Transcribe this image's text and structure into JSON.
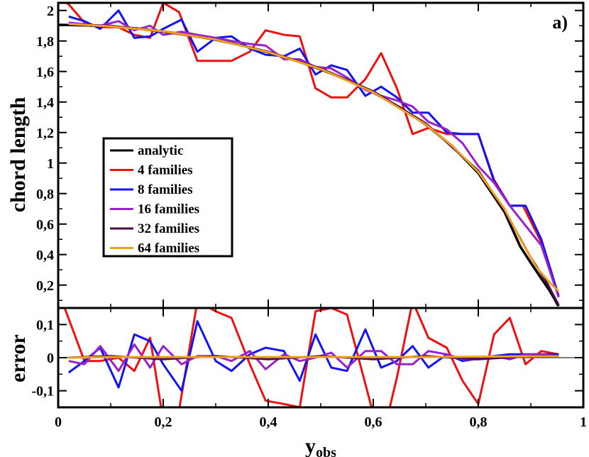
{
  "chart_data": [
    {
      "type": "line",
      "panel_label": "a)",
      "ylabel": "chord length",
      "xlim": [
        0,
        1
      ],
      "ylim": [
        0.05,
        2.05
      ],
      "yticks": [
        0.2,
        0.4,
        0.6,
        0.8,
        1,
        1.2,
        1.4,
        1.6,
        1.8,
        2
      ],
      "ytick_labels": [
        "0,2",
        "0,4",
        "0,6",
        "0,8",
        "1",
        "1,2",
        "1,4",
        "1,6",
        "1,8",
        "2"
      ],
      "legend": {
        "position": "left",
        "entries": [
          "analytic",
          "4 families",
          "8 families",
          "16 families",
          "32 families",
          "64 families"
        ]
      },
      "series": [
        {
          "name": "analytic",
          "color": "#000000",
          "x": [
            0,
            0.05,
            0.1,
            0.15,
            0.2,
            0.25,
            0.3,
            0.35,
            0.4,
            0.45,
            0.5,
            0.55,
            0.6,
            0.65,
            0.7,
            0.75,
            0.8,
            0.85,
            0.88,
            0.9,
            0.92,
            0.935,
            0.945,
            0.95,
            0.953
          ],
          "y": [
            1.906,
            1.903,
            1.895,
            1.882,
            1.863,
            1.838,
            1.808,
            1.77,
            1.726,
            1.674,
            1.614,
            1.544,
            1.462,
            1.366,
            1.252,
            1.113,
            0.934,
            0.679,
            0.452,
            0.346,
            0.243,
            0.168,
            0.11,
            0.077,
            0.062
          ]
        },
        {
          "name": "4 families",
          "color": "#ee1111",
          "x": [
            0.01,
            0.02,
            0.05,
            0.08,
            0.115,
            0.145,
            0.175,
            0.2,
            0.23,
            0.265,
            0.3,
            0.33,
            0.365,
            0.395,
            0.43,
            0.46,
            0.49,
            0.52,
            0.55,
            0.585,
            0.615,
            0.645,
            0.675,
            0.705,
            0.74,
            0.77,
            0.8,
            0.83,
            0.86,
            0.885,
            0.92,
            0.953
          ],
          "y": [
            2.06,
            2.04,
            1.92,
            1.89,
            1.89,
            1.84,
            1.82,
            2.05,
            1.99,
            1.67,
            1.67,
            1.67,
            1.73,
            1.87,
            1.84,
            1.83,
            1.49,
            1.43,
            1.43,
            1.55,
            1.72,
            1.49,
            1.19,
            1.23,
            1.19,
            1.19,
            1.19,
            0.89,
            0.72,
            0.72,
            0.48,
            0.13
          ]
        },
        {
          "name": "8 families",
          "color": "#1414ee",
          "x": [
            0.02,
            0.05,
            0.08,
            0.115,
            0.145,
            0.175,
            0.2,
            0.235,
            0.265,
            0.3,
            0.33,
            0.365,
            0.395,
            0.43,
            0.46,
            0.49,
            0.52,
            0.55,
            0.585,
            0.615,
            0.645,
            0.675,
            0.705,
            0.74,
            0.77,
            0.8,
            0.83,
            0.86,
            0.89,
            0.92,
            0.953
          ],
          "y": [
            1.96,
            1.93,
            1.88,
            2.0,
            1.82,
            1.83,
            1.88,
            1.94,
            1.73,
            1.82,
            1.83,
            1.75,
            1.71,
            1.7,
            1.75,
            1.58,
            1.64,
            1.61,
            1.44,
            1.5,
            1.43,
            1.33,
            1.33,
            1.2,
            1.19,
            1.19,
            0.88,
            0.72,
            0.72,
            0.5,
            0.13
          ]
        },
        {
          "name": "16 families",
          "color": "#9a22cc",
          "x": [
            0.02,
            0.05,
            0.08,
            0.115,
            0.145,
            0.175,
            0.2,
            0.235,
            0.265,
            0.3,
            0.33,
            0.365,
            0.395,
            0.43,
            0.46,
            0.49,
            0.52,
            0.55,
            0.585,
            0.615,
            0.645,
            0.675,
            0.705,
            0.74,
            0.77,
            0.8,
            0.83,
            0.86,
            0.89,
            0.92,
            0.953
          ],
          "y": [
            1.92,
            1.91,
            1.9,
            1.93,
            1.87,
            1.9,
            1.84,
            1.86,
            1.84,
            1.82,
            1.8,
            1.78,
            1.77,
            1.68,
            1.68,
            1.63,
            1.62,
            1.56,
            1.48,
            1.44,
            1.41,
            1.37,
            1.27,
            1.22,
            1.13,
            0.98,
            0.87,
            0.72,
            0.59,
            0.46,
            0.12
          ]
        },
        {
          "name": "32 families",
          "color": "#4a0c4a",
          "x": [
            0.02,
            0.1,
            0.2,
            0.3,
            0.4,
            0.5,
            0.6,
            0.7,
            0.8,
            0.85,
            0.9,
            0.93,
            0.953
          ],
          "y": [
            1.91,
            1.9,
            1.86,
            1.81,
            1.73,
            1.62,
            1.47,
            1.26,
            0.95,
            0.69,
            0.38,
            0.22,
            0.07
          ]
        },
        {
          "name": "64 families",
          "color": "#f0a020",
          "x": [
            0.02,
            0.1,
            0.2,
            0.3,
            0.4,
            0.5,
            0.6,
            0.7,
            0.75,
            0.8,
            0.85,
            0.88,
            0.91,
            0.935,
            0.953
          ],
          "y": [
            1.912,
            1.895,
            1.864,
            1.809,
            1.727,
            1.616,
            1.464,
            1.253,
            1.114,
            0.942,
            0.7,
            0.5,
            0.32,
            0.22,
            0.16
          ]
        }
      ]
    },
    {
      "type": "line",
      "ylabel": "error",
      "xlabel": "y",
      "xlabel_sub": "obs",
      "xlim": [
        0,
        1
      ],
      "ylim": [
        -0.15,
        0.15
      ],
      "xticks": [
        0,
        0.2,
        0.4,
        0.6,
        0.8,
        1
      ],
      "xtick_labels": [
        "0",
        "0,2",
        "0,4",
        "0,6",
        "0,8",
        "1"
      ],
      "yticks": [
        -0.1,
        0,
        0.1
      ],
      "ytick_labels": [
        "-0,1",
        "0",
        "0,1"
      ],
      "series": [
        {
          "name": "4 families",
          "color": "#ee1111",
          "x": [
            0.01,
            0.05,
            0.08,
            0.115,
            0.145,
            0.175,
            0.2,
            0.23,
            0.265,
            0.3,
            0.33,
            0.365,
            0.395,
            0.43,
            0.46,
            0.49,
            0.52,
            0.55,
            0.585,
            0.615,
            0.645,
            0.675,
            0.705,
            0.74,
            0.77,
            0.8,
            0.83,
            0.86,
            0.89,
            0.92,
            0.953
          ],
          "y": [
            0.16,
            -0.01,
            -0.01,
            0.0,
            -0.04,
            0.06,
            -0.19,
            -0.16,
            0.17,
            0.14,
            0.12,
            -0.02,
            -0.13,
            -0.14,
            -0.15,
            0.14,
            0.15,
            0.13,
            -0.08,
            -0.26,
            -0.06,
            0.17,
            0.06,
            0.03,
            -0.07,
            -0.14,
            0.07,
            0.12,
            -0.02,
            0.02,
            0.01
          ]
        },
        {
          "name": "8 families",
          "color": "#1414ee",
          "x": [
            0.02,
            0.05,
            0.08,
            0.115,
            0.145,
            0.175,
            0.2,
            0.235,
            0.265,
            0.3,
            0.33,
            0.365,
            0.395,
            0.43,
            0.46,
            0.49,
            0.52,
            0.55,
            0.585,
            0.615,
            0.645,
            0.675,
            0.705,
            0.74,
            0.77,
            0.8,
            0.83,
            0.86,
            0.89,
            0.92,
            0.953
          ],
          "y": [
            -0.045,
            -0.01,
            0.03,
            -0.09,
            0.07,
            0.05,
            -0.02,
            -0.1,
            0.11,
            -0.01,
            -0.04,
            0.01,
            0.03,
            0.02,
            -0.07,
            0.07,
            -0.03,
            -0.04,
            0.085,
            -0.03,
            -0.01,
            0.035,
            -0.03,
            0.01,
            -0.01,
            -0.003,
            0.005,
            0.01,
            0.01,
            0.01,
            0.01
          ]
        },
        {
          "name": "16 families",
          "color": "#9a22cc",
          "x": [
            0.02,
            0.05,
            0.08,
            0.115,
            0.145,
            0.175,
            0.2,
            0.235,
            0.265,
            0.3,
            0.33,
            0.365,
            0.395,
            0.43,
            0.46,
            0.49,
            0.52,
            0.55,
            0.585,
            0.615,
            0.645,
            0.675,
            0.705,
            0.74,
            0.77,
            0.8,
            0.83,
            0.86,
            0.89,
            0.92,
            0.953
          ],
          "y": [
            -0.01,
            -0.02,
            0.035,
            -0.04,
            0.04,
            -0.03,
            0.035,
            -0.02,
            0.005,
            0.005,
            -0.01,
            0.02,
            -0.035,
            0.01,
            -0.01,
            0.0,
            0.015,
            -0.03,
            0.02,
            0.02,
            -0.02,
            -0.02,
            0.02,
            0.01,
            -0.005,
            -0.005,
            0.005,
            -0.005,
            0.01,
            0.01,
            0.005
          ]
        },
        {
          "name": "32 families",
          "color": "#4a0c4a",
          "x": [
            0.02,
            0.1,
            0.2,
            0.3,
            0.4,
            0.5,
            0.6,
            0.7,
            0.8,
            0.9,
            0.953
          ],
          "y": [
            0.0,
            0.005,
            -0.005,
            0.005,
            -0.005,
            0.005,
            -0.005,
            0.005,
            -0.005,
            0.005,
            0.005
          ]
        },
        {
          "name": "64 families",
          "color": "#f0a020",
          "x": [
            0.02,
            0.1,
            0.2,
            0.3,
            0.4,
            0.5,
            0.6,
            0.7,
            0.8,
            0.9,
            0.953
          ],
          "y": [
            0.0,
            0.002,
            0.002,
            0.002,
            0.002,
            0.002,
            0.002,
            0.002,
            0.003,
            0.004,
            0.004
          ]
        }
      ]
    }
  ]
}
